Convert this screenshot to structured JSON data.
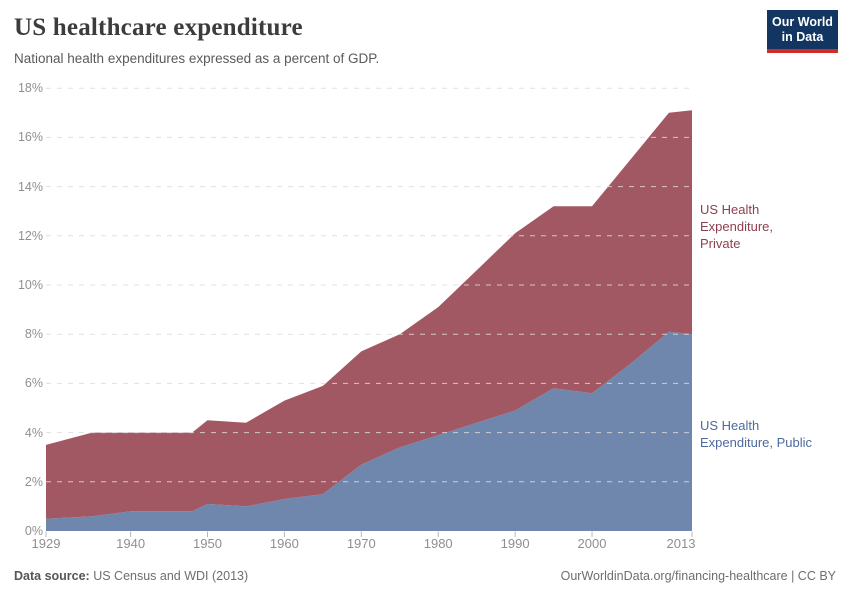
{
  "header": {
    "title": "US healthcare expenditure",
    "subtitle": "National health expenditures expressed as a percent of GDP.",
    "logo_line1": "Our World",
    "logo_line2": "in Data",
    "logo_bg_color": "#123561",
    "logo_accent_color": "#cf2d27"
  },
  "chart_data": {
    "type": "area",
    "stacked": true,
    "title": "US healthcare expenditure",
    "subtitle": "National health expenditures expressed as a percent of GDP.",
    "x": [
      1929,
      1935,
      1940,
      1948,
      1950,
      1955,
      1960,
      1965,
      1970,
      1975,
      1980,
      1985,
      1990,
      1995,
      2000,
      2005,
      2010,
      2013
    ],
    "series": [
      {
        "name": "US Health Expenditure, Public",
        "color": "#6f87ac",
        "label_color": "#4d6a9e",
        "values": [
          0.5,
          0.6,
          0.8,
          0.8,
          1.1,
          1.0,
          1.3,
          1.5,
          2.7,
          3.4,
          3.9,
          4.4,
          4.9,
          5.8,
          5.6,
          6.8,
          8.1,
          8.0
        ]
      },
      {
        "name": "US Health Expenditure, Private",
        "color": "#a15862",
        "label_color": "#8e4050",
        "values": [
          3.0,
          3.4,
          3.2,
          3.2,
          3.4,
          3.4,
          4.0,
          4.4,
          4.6,
          4.6,
          5.2,
          6.2,
          7.2,
          7.4,
          7.6,
          8.3,
          8.9,
          9.1
        ]
      }
    ],
    "totals": [
      3.5,
      4.0,
      4.0,
      4.0,
      4.5,
      4.4,
      5.3,
      5.9,
      7.3,
      8.0,
      9.1,
      10.6,
      12.1,
      13.2,
      13.2,
      15.1,
      17.0,
      17.1
    ],
    "xlabel": "",
    "ylabel": "",
    "xlim": [
      1929,
      2013
    ],
    "ylim": [
      0,
      18
    ],
    "ytick_values": [
      0,
      2,
      4,
      6,
      8,
      10,
      12,
      14,
      16,
      18
    ],
    "ytick_labels": [
      "0%",
      "2%",
      "4%",
      "6%",
      "8%",
      "10%",
      "12%",
      "14%",
      "16%",
      "18%"
    ],
    "xtick_values": [
      1929,
      1940,
      1950,
      1960,
      1970,
      1980,
      1990,
      2000,
      2013
    ],
    "xtick_labels": [
      "1929",
      "1940",
      "1950",
      "1960",
      "1970",
      "1980",
      "1990",
      "2000",
      "2013"
    ],
    "grid": "dashed",
    "grid_color": "#dcdcdc",
    "legend_position": "right-inline-annotations"
  },
  "labels": {
    "private": "US Health\nExpenditure,\nPrivate",
    "public": "US Health\nExpenditure, Public"
  },
  "footer": {
    "source_label": "Data source:",
    "source_text": " US Census and WDI (2013)",
    "link_text": "OurWorldinData.org/financing-healthcare | CC BY"
  }
}
